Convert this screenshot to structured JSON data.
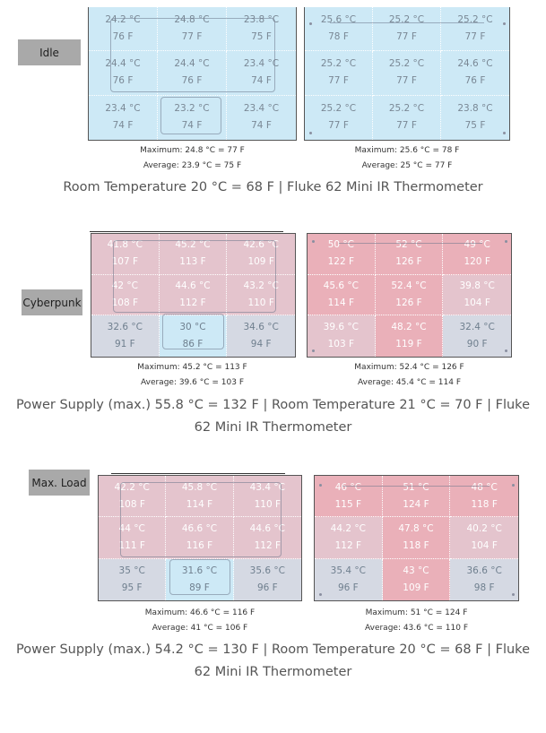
{
  "sections": [
    {
      "label": "Idle",
      "top_panel": {
        "cells": [
          [
            "24.2 °C",
            "76 F"
          ],
          [
            "24.8 °C",
            "77 F"
          ],
          [
            "23.8 °C",
            "75 F"
          ],
          [
            "24.4 °C",
            "76 F"
          ],
          [
            "24.4 °C",
            "76 F"
          ],
          [
            "23.4 °C",
            "74 F"
          ],
          [
            "23.4 °C",
            "74 F"
          ],
          [
            "23.2 °C",
            "74 F"
          ],
          [
            "23.4 °C",
            "74 F"
          ]
        ],
        "maximum": "Maximum: 24.8 °C = 77 F",
        "average": "Average: 23.9 °C = 75 F"
      },
      "bottom_panel": {
        "cells": [
          [
            "25.6 °C",
            "78 F"
          ],
          [
            "25.2 °C",
            "77 F"
          ],
          [
            "25.2 °C",
            "77 F"
          ],
          [
            "25.2 °C",
            "77 F"
          ],
          [
            "25.2 °C",
            "77 F"
          ],
          [
            "24.6 °C",
            "76 F"
          ],
          [
            "25.2 °C",
            "77 F"
          ],
          [
            "25.2 °C",
            "77 F"
          ],
          [
            "23.8 °C",
            "75 F"
          ]
        ],
        "maximum": "Maximum: 25.6 °C = 78 F",
        "average": "Average: 25 °C = 77 F"
      },
      "caption": "Room Temperature 20 °C = 68 F | Fluke 62 Mini IR Thermometer"
    },
    {
      "label": "Cyberpunk",
      "top_panel": {
        "cells": [
          [
            "41.8 °C",
            "107 F"
          ],
          [
            "45.2 °C",
            "113 F"
          ],
          [
            "42.6 °C",
            "109 F"
          ],
          [
            "42 °C",
            "108 F"
          ],
          [
            "44.6 °C",
            "112 F"
          ],
          [
            "43.2 °C",
            "110 F"
          ],
          [
            "32.6 °C",
            "91 F"
          ],
          [
            "30 °C",
            "86 F"
          ],
          [
            "34.6 °C",
            "94 F"
          ]
        ],
        "maximum": "Maximum: 45.2 °C = 113 F",
        "average": "Average: 39.6 °C = 103 F"
      },
      "bottom_panel": {
        "cells": [
          [
            "50 °C",
            "122 F"
          ],
          [
            "52 °C",
            "126 F"
          ],
          [
            "49 °C",
            "120 F"
          ],
          [
            "45.6 °C",
            "114 F"
          ],
          [
            "52.4 °C",
            "126 F"
          ],
          [
            "39.8 °C",
            "104 F"
          ],
          [
            "39.6 °C",
            "103 F"
          ],
          [
            "48.2 °C",
            "119 F"
          ],
          [
            "32.4 °C",
            "90 F"
          ]
        ],
        "maximum": "Maximum: 52.4 °C = 126 F",
        "average": "Average: 45.4 °C = 114 F"
      },
      "caption_line1": "Power Supply (max.)  55.8 °C = 132 F | Room Temperature 21 °C = 70 F | Fluke",
      "caption_line2": "62 Mini IR Thermometer"
    },
    {
      "label": "Max. Load",
      "top_panel": {
        "cells": [
          [
            "42.2 °C",
            "108 F"
          ],
          [
            "45.8 °C",
            "114 F"
          ],
          [
            "43.4 °C",
            "110 F"
          ],
          [
            "44 °C",
            "111 F"
          ],
          [
            "46.6 °C",
            "116 F"
          ],
          [
            "44.6 °C",
            "112 F"
          ],
          [
            "35 °C",
            "95 F"
          ],
          [
            "31.6 °C",
            "89 F"
          ],
          [
            "35.6 °C",
            "96 F"
          ]
        ],
        "maximum": "Maximum: 46.6 °C = 116 F",
        "average": "Average: 41 °C = 106 F"
      },
      "bottom_panel": {
        "cells": [
          [
            "46 °C",
            "115 F"
          ],
          [
            "51 °C",
            "124 F"
          ],
          [
            "48 °C",
            "118 F"
          ],
          [
            "44.2 °C",
            "112 F"
          ],
          [
            "47.8 °C",
            "118 F"
          ],
          [
            "40.2 °C",
            "104 F"
          ],
          [
            "35.4 °C",
            "96 F"
          ],
          [
            "43 °C",
            "109 F"
          ],
          [
            "36.6 °C",
            "98 F"
          ]
        ],
        "maximum": "Maximum: 51 °C = 124 F",
        "average": "Average: 43.6 °C = 110 F"
      },
      "caption_line1": "Power Supply (max.)  54.2 °C = 130 F | Room Temperature 20 °C = 68 F | Fluke",
      "caption_line2": "62 Mini IR Thermometer"
    }
  ],
  "colors": {
    "cool": "#cde9f6",
    "warm": "#e4c4cd",
    "hot": "#eab0b9",
    "neutral": "#d5d9e3"
  }
}
